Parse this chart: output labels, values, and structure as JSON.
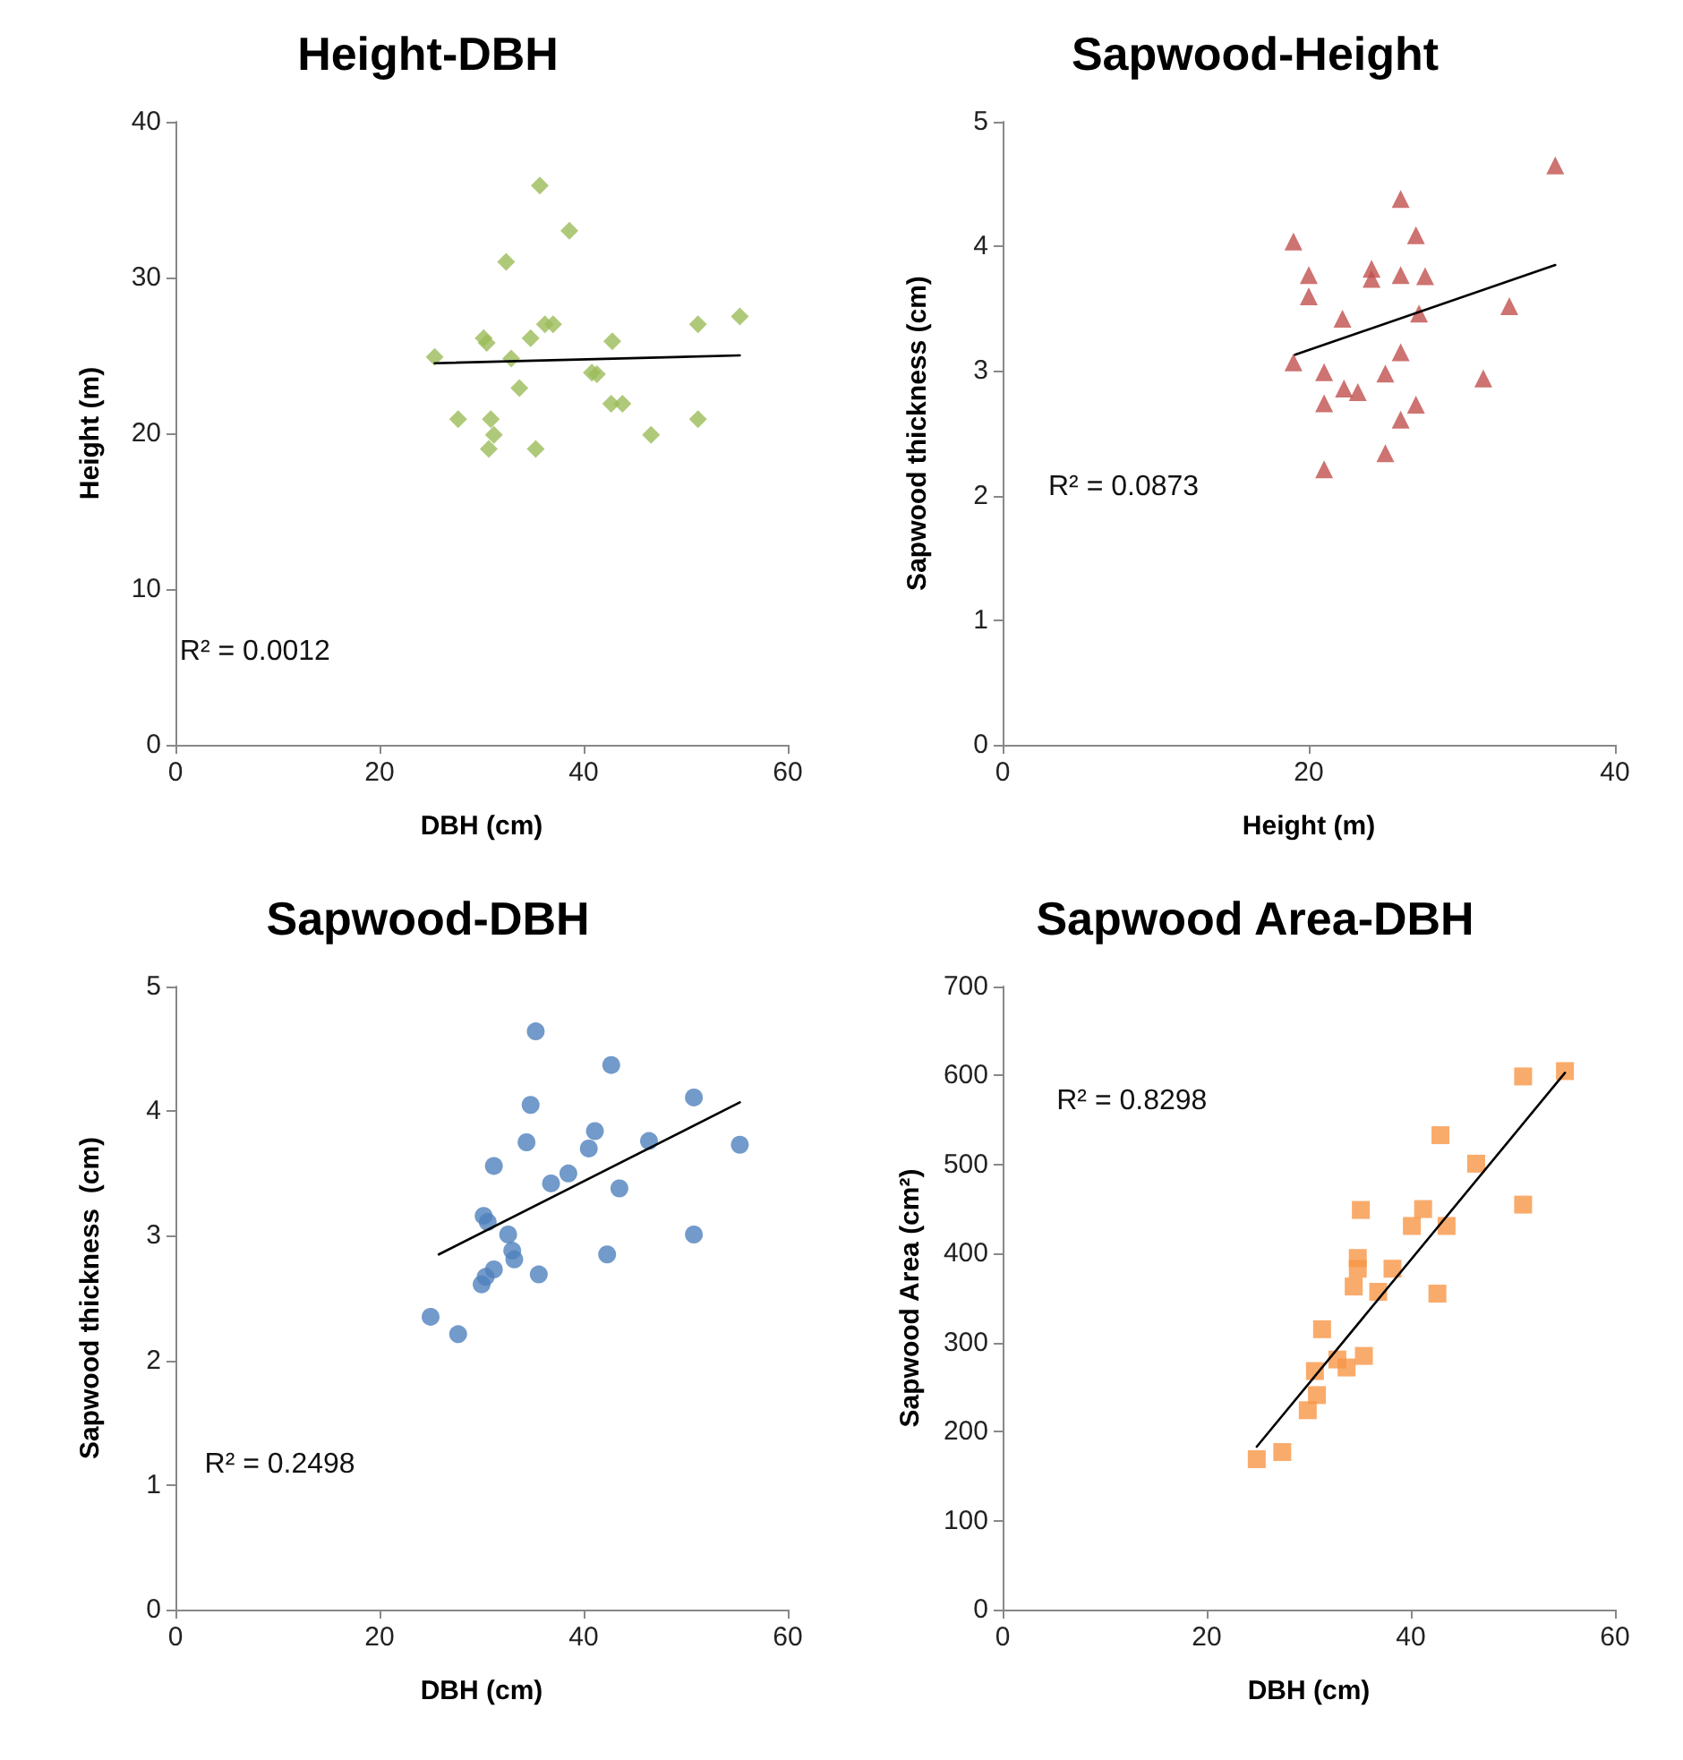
{
  "chart_data": [
    {
      "type": "scatter",
      "title": "Height-DBH",
      "xlabel": "DBH (cm)",
      "ylabel": "Height (m)",
      "annotations": [
        "R² = 0.0012"
      ],
      "xlim": [
        0,
        60
      ],
      "xticks": [
        0,
        20,
        40,
        60
      ],
      "ylim": [
        0,
        40
      ],
      "yticks": [
        0,
        10,
        20,
        30,
        40
      ],
      "series": [
        {
          "marker": "diamond",
          "color": "#9bbb59",
          "x": [
            25.4,
            27.7,
            30.2,
            30.5,
            30.9,
            31.2,
            30.7,
            32.4,
            32.9,
            33.7,
            34.8,
            35.3,
            35.7,
            36.2,
            37.0,
            38.6,
            40.8,
            41.3,
            42.8,
            42.7,
            43.8,
            46.6,
            51.2,
            51.2,
            55.3
          ],
          "values": [
            24.9,
            20.9,
            26.1,
            25.8,
            20.9,
            19.9,
            19.0,
            31.0,
            24.8,
            22.9,
            26.1,
            19.0,
            35.9,
            27.0,
            27.0,
            33.0,
            23.9,
            23.8,
            25.9,
            21.9,
            21.9,
            19.9,
            20.9,
            27.0,
            27.5
          ]
        },
        {
          "type": "line",
          "marker": "none",
          "color": "#000000",
          "x": [
            25.4,
            55.3
          ],
          "values": [
            24.5,
            25.0
          ]
        }
      ]
    },
    {
      "type": "scatter",
      "title": "Sapwood-Height",
      "xlabel": "Height (m)",
      "ylabel": "Sapwood thickness (cm)",
      "annotations": [
        "R² = 0.0873"
      ],
      "xlim": [
        0,
        40
      ],
      "xticks": [
        0,
        20,
        40
      ],
      "ylim": [
        0,
        5
      ],
      "yticks": [
        0,
        1,
        2,
        3,
        4,
        5
      ],
      "series": [
        {
          "marker": "triangle",
          "color": "#c0504d",
          "x": [
            19.0,
            20.0,
            20.0,
            19.0,
            22.2,
            21.0,
            21.0,
            21.0,
            22.3,
            23.2,
            24.1,
            24.1,
            25.0,
            25.0,
            26.0,
            26.0,
            26.0,
            26.0,
            27.0,
            27.0,
            27.6,
            27.2,
            31.4,
            33.1,
            36.1
          ],
          "values": [
            4.04,
            3.77,
            3.6,
            3.07,
            3.42,
            2.99,
            2.74,
            2.21,
            2.86,
            2.83,
            3.82,
            3.74,
            2.98,
            2.34,
            4.38,
            3.77,
            3.15,
            2.61,
            4.09,
            2.73,
            3.76,
            3.46,
            2.94,
            3.52,
            4.65
          ]
        },
        {
          "type": "line",
          "marker": "none",
          "color": "#000000",
          "x": [
            19.1,
            36.1
          ],
          "values": [
            3.13,
            3.85
          ]
        }
      ]
    },
    {
      "type": "scatter",
      "title": "Sapwood-DBH",
      "xlabel": "DBH (cm)",
      "ylabel": "Sapwood thickness  (cm)",
      "annotations": [
        "R² = 0.2498"
      ],
      "xlim": [
        0,
        60
      ],
      "xticks": [
        0,
        20,
        40,
        60
      ],
      "ylim": [
        0,
        5
      ],
      "yticks": [
        0,
        1,
        2,
        3,
        4,
        5
      ],
      "series": [
        {
          "marker": "circle",
          "color": "#4f81bd",
          "x": [
            25.0,
            27.7,
            30.0,
            30.4,
            31.2,
            30.2,
            30.6,
            31.2,
            32.6,
            33.0,
            33.2,
            34.4,
            34.8,
            35.3,
            35.6,
            36.8,
            38.5,
            40.5,
            41.1,
            42.3,
            42.7,
            43.5,
            46.4,
            50.8,
            50.8,
            55.3
          ],
          "values": [
            2.35,
            2.21,
            2.61,
            2.67,
            2.73,
            3.16,
            3.11,
            3.56,
            3.01,
            2.88,
            2.81,
            3.75,
            4.05,
            4.64,
            2.69,
            3.42,
            3.5,
            3.7,
            3.84,
            2.85,
            4.37,
            3.38,
            3.76,
            4.11,
            3.01,
            3.73
          ]
        },
        {
          "type": "line",
          "marker": "none",
          "color": "#000000",
          "x": [
            25.8,
            55.3
          ],
          "values": [
            2.85,
            4.07
          ]
        }
      ]
    },
    {
      "type": "scatter",
      "title": "Sapwood Area-DBH",
      "xlabel": "DBH (cm)",
      "ylabel": "Sapwood Area (cm²)",
      "annotations": [
        "R² = 0.8298"
      ],
      "xlim": [
        0,
        60
      ],
      "xticks": [
        0,
        20,
        40,
        60
      ],
      "ylim": [
        0,
        700
      ],
      "yticks": [
        0,
        100,
        200,
        300,
        400,
        500,
        600,
        700
      ],
      "series": [
        {
          "marker": "square",
          "color": "#f79646",
          "x": [
            24.9,
            27.4,
            29.9,
            30.8,
            30.6,
            31.3,
            32.8,
            33.7,
            35.4,
            34.4,
            34.8,
            34.8,
            35.1,
            36.8,
            38.2,
            40.1,
            41.2,
            43.5,
            42.6,
            42.9,
            46.4,
            51.0,
            51.0,
            55.1
          ],
          "values": [
            169,
            177,
            224,
            241,
            268,
            315,
            281,
            272,
            285,
            363,
            383,
            395,
            449,
            357,
            383,
            431,
            450,
            431,
            355,
            533,
            501,
            599,
            455,
            605
          ]
        },
        {
          "type": "line",
          "marker": "none",
          "color": "#000000",
          "x": [
            24.9,
            55.1
          ],
          "values": [
            183,
            603
          ]
        }
      ]
    }
  ]
}
